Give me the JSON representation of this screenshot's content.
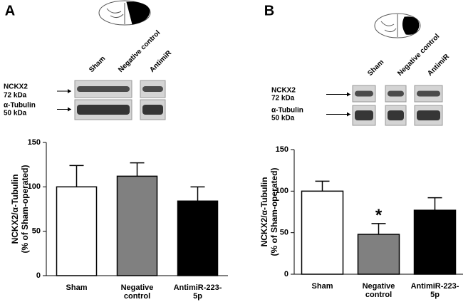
{
  "chart_data": [
    {
      "type": "bar",
      "panel_label": "A",
      "blot": {
        "lanes": [
          "Sham",
          "Negative control",
          "AntimiR"
        ],
        "rows": [
          [
            "NCKX2",
            "72 kDa"
          ],
          [
            "α-Tubulin",
            "50 kDa"
          ]
        ]
      },
      "ylabel": [
        "NCKX2/α-Tubulin",
        "(% of Sham-operated)"
      ],
      "categories": [
        "Sham",
        "Negative control",
        "AntimiR-223-5p"
      ],
      "values": [
        100,
        112,
        84
      ],
      "errors": [
        24,
        15,
        16
      ],
      "colors": [
        "#ffffff",
        "#808080",
        "#000000"
      ],
      "ylim": [
        0,
        150
      ],
      "yticks": [
        0,
        50,
        100,
        150
      ]
    },
    {
      "type": "bar",
      "panel_label": "B",
      "blot": {
        "lanes": [
          "Sham",
          "Negative control",
          "AntimiR"
        ],
        "rows": [
          [
            "NCKX2",
            "72 kDa"
          ],
          [
            "α-Tubulin",
            "50 kDa"
          ]
        ]
      },
      "ylabel": [
        "NCKX2/α-Tubulin",
        "(% of Sham-operated)"
      ],
      "categories": [
        "Sham",
        "Negative control",
        "AntimiR-223-5p"
      ],
      "values": [
        100,
        48,
        77
      ],
      "errors": [
        12,
        13,
        15
      ],
      "colors": [
        "#ffffff",
        "#808080",
        "#000000"
      ],
      "annotations": [
        {
          "category": 1,
          "text": "*"
        }
      ],
      "ylim": [
        0,
        150
      ],
      "yticks": [
        0,
        50,
        100,
        150
      ]
    }
  ]
}
